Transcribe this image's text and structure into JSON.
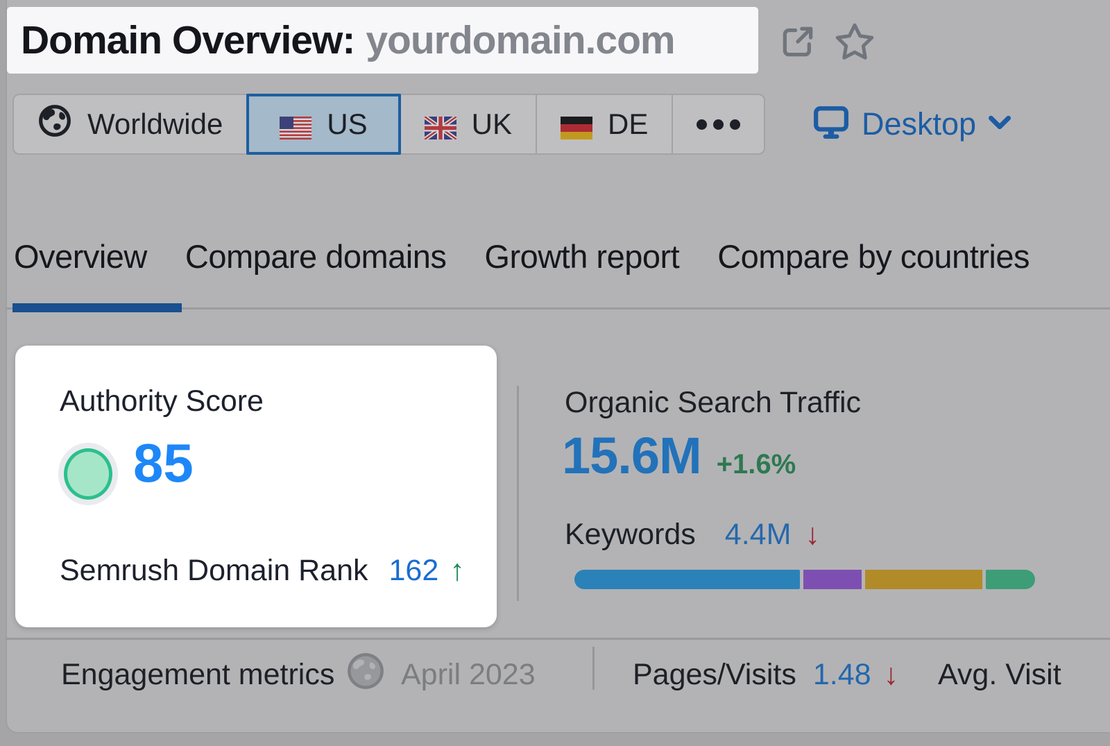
{
  "header": {
    "title_label": "Domain Overview:",
    "domain": "yourdomain.com"
  },
  "region_bar": {
    "items": [
      {
        "label": "Worldwide",
        "icon": "globe-icon",
        "selected": false
      },
      {
        "label": "US",
        "icon": "us-flag",
        "selected": true
      },
      {
        "label": "UK",
        "icon": "uk-flag",
        "selected": false
      },
      {
        "label": "DE",
        "icon": "de-flag",
        "selected": false
      },
      {
        "label": "more",
        "icon": "ellipsis-icon",
        "selected": false
      }
    ]
  },
  "device_selector": {
    "label": "Desktop"
  },
  "tabs": [
    {
      "label": "Overview",
      "active": true
    },
    {
      "label": "Compare domains",
      "active": false
    },
    {
      "label": "Growth report",
      "active": false
    },
    {
      "label": "Compare by countries",
      "active": false
    }
  ],
  "authority_card": {
    "title": "Authority Score",
    "score": "85",
    "rank_label": "Semrush Domain Rank",
    "rank_value": "162",
    "rank_trend_arrow": "↑"
  },
  "organic_traffic": {
    "title": "Organic Search Traffic",
    "value": "15.6M",
    "change": "+1.6%",
    "keywords_label": "Keywords",
    "keywords_value": "4.4M",
    "keywords_trend_arrow": "↓",
    "bar_segments": [
      {
        "name": "blue",
        "color": "#2a82b8",
        "percent": 50
      },
      {
        "name": "purple",
        "color": "#7e4fb2",
        "percent": 13
      },
      {
        "name": "gold",
        "color": "#b18b28",
        "percent": 26
      },
      {
        "name": "green",
        "color": "#3d9d77",
        "percent": 11
      }
    ]
  },
  "engagement": {
    "title": "Engagement metrics",
    "date": "April 2023",
    "pages_visits_label": "Pages/Visits",
    "pages_visits_value": "1.48",
    "pages_visits_trend_arrow": "↓",
    "avg_visit_label": "Avg. Visit"
  },
  "colors": {
    "accent_blue": "#1c5f9f",
    "score_blue": "#1e87f8",
    "link_blue": "#1d5ca4",
    "positive_green": "#1c8a59",
    "negative_red": "#9c2732",
    "gauge_fill": "#a6e6c8",
    "gauge_stroke": "#2cbf8d"
  }
}
